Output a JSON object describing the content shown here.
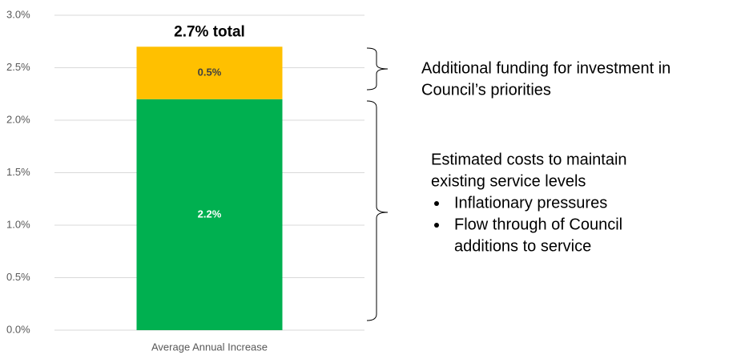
{
  "chart_data": {
    "type": "stacked_bar",
    "categories": [
      "Average Annual Increase"
    ],
    "series": [
      {
        "color": "#00b050",
        "values": [
          2.2
        ],
        "value_labels": [
          "2.2%"
        ],
        "label_color": "#ffffff"
      },
      {
        "color": "#ffc000",
        "values": [
          0.5
        ],
        "value_labels": [
          "0.5%"
        ],
        "label_color": "#404040"
      }
    ],
    "total_label": "2.7% total",
    "ylim": [
      0,
      3
    ],
    "yticks": [
      {
        "value": 0,
        "label": "0.0%"
      },
      {
        "value": 0.5,
        "label": "0.5%"
      },
      {
        "value": 1,
        "label": "1.0%"
      },
      {
        "value": 1.5,
        "label": "1.5%"
      },
      {
        "value": 2,
        "label": "2.0%"
      },
      {
        "value": 2.5,
        "label": "2.5%"
      },
      {
        "value": 3,
        "label": "3.0%"
      }
    ],
    "grid": true,
    "annotations": [
      {
        "lines": [
          "Additional funding for investment in",
          "Council’s priorities"
        ]
      },
      {
        "lines": [
          "Estimated costs to maintain",
          "existing service levels"
        ],
        "bullets": [
          [
            "Inflationary pressures"
          ],
          [
            "Flow through of Council",
            "additions to service"
          ]
        ]
      }
    ]
  }
}
